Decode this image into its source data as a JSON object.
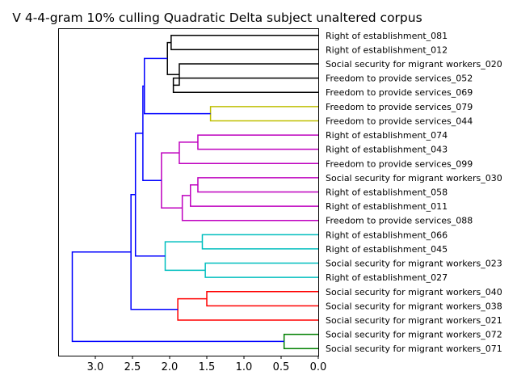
{
  "chart_data": {
    "type": "dendrogram",
    "title": "V 4-4-gram 10% culling Quadratic Delta subject unaltered corpus",
    "orientation": "left",
    "xlim": [
      3.5,
      0.0
    ],
    "xticks": [
      3.0,
      2.5,
      2.0,
      1.5,
      1.0,
      0.5,
      0.0
    ],
    "xtick_labels": [
      "3.0",
      "2.5",
      "2.0",
      "1.5",
      "1.0",
      "0.5",
      "0.0"
    ],
    "grid": false,
    "colors": {
      "black": "#000000",
      "olive": "#bfbf00",
      "magenta": "#bf00bf",
      "cyan": "#00bfbf",
      "red": "#ff0000",
      "green": "#008000",
      "blue": "#0000ff"
    },
    "leaves": [
      "Right of establishment_081",
      "Right of establishment_012",
      "Social security for migrant workers_020",
      "Freedom to provide services_052",
      "Freedom to provide services_069",
      "Freedom to provide services_079",
      "Freedom to provide services_044",
      "Right of establishment_074",
      "Right of establishment_043",
      "Freedom to provide services_099",
      "Social security for migrant workers_030",
      "Right of establishment_058",
      "Right of establishment_011",
      "Freedom to provide services_088",
      "Right of establishment_066",
      "Right of establishment_045",
      "Social security for migrant workers_023",
      "Right of establishment_027",
      "Social security for migrant workers_040",
      "Social security for migrant workers_038",
      "Social security for migrant workers_021",
      "Social security for migrant workers_072",
      "Social security for migrant workers_071"
    ],
    "merges": [
      {
        "left": "L0",
        "right": "L1",
        "height": 1.98,
        "color": "black"
      },
      {
        "left": "L3",
        "right": "L4",
        "height": 1.95,
        "color": "black"
      },
      {
        "left": "L2",
        "right": "M1",
        "height": 1.87,
        "color": "black"
      },
      {
        "left": "M0",
        "right": "M2",
        "height": 2.03,
        "color": "black"
      },
      {
        "left": "L5",
        "right": "L6",
        "height": 1.45,
        "color": "olive"
      },
      {
        "left": "M3",
        "right": "M4",
        "height": 2.34,
        "color": "blue"
      },
      {
        "left": "L7",
        "right": "L8",
        "height": 1.62,
        "color": "magenta"
      },
      {
        "left": "M6",
        "right": "L9",
        "height": 1.87,
        "color": "magenta"
      },
      {
        "left": "L10",
        "right": "L11",
        "height": 1.62,
        "color": "magenta"
      },
      {
        "left": "M8",
        "right": "L12",
        "height": 1.72,
        "color": "magenta"
      },
      {
        "left": "M9",
        "right": "L13",
        "height": 1.83,
        "color": "magenta"
      },
      {
        "left": "M7",
        "right": "M10",
        "height": 2.11,
        "color": "magenta"
      },
      {
        "left": "M5",
        "right": "M11",
        "height": 2.36,
        "color": "blue"
      },
      {
        "left": "L14",
        "right": "L15",
        "height": 1.56,
        "color": "cyan"
      },
      {
        "left": "L16",
        "right": "L17",
        "height": 1.52,
        "color": "cyan"
      },
      {
        "left": "M13",
        "right": "M14",
        "height": 2.06,
        "color": "cyan"
      },
      {
        "left": "M12",
        "right": "M15",
        "height": 2.46,
        "color": "blue"
      },
      {
        "left": "L18",
        "right": "L19",
        "height": 1.5,
        "color": "red"
      },
      {
        "left": "M17",
        "right": "L20",
        "height": 1.89,
        "color": "red"
      },
      {
        "left": "M16",
        "right": "M18",
        "height": 2.52,
        "color": "blue"
      },
      {
        "left": "L21",
        "right": "L22",
        "height": 0.46,
        "color": "green"
      },
      {
        "left": "M19",
        "right": "M20",
        "height": 3.31,
        "color": "blue"
      }
    ]
  }
}
